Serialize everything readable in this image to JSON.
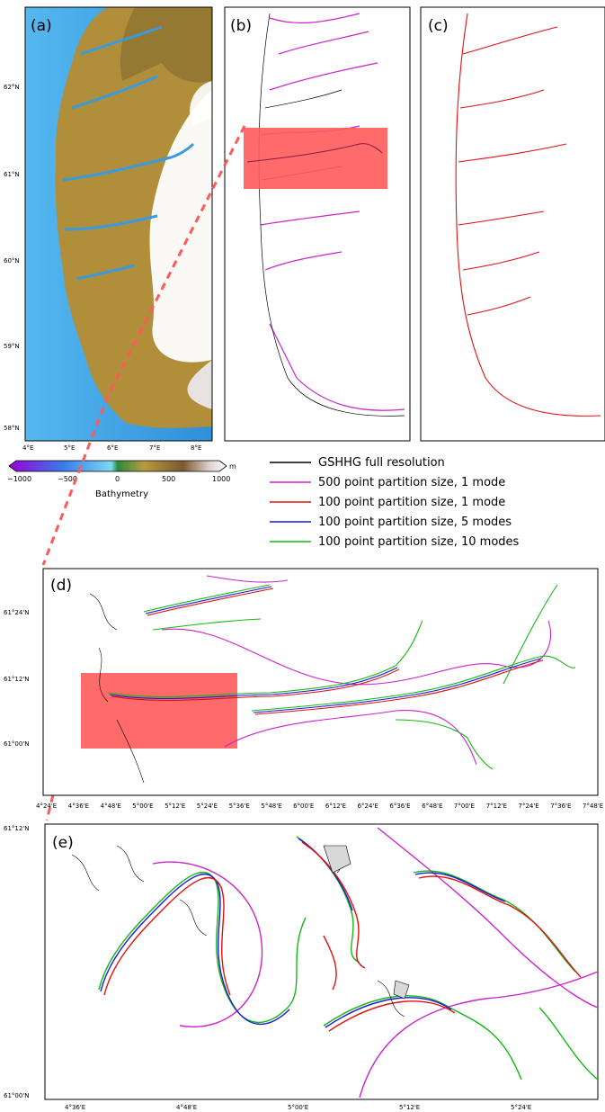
{
  "panels": {
    "a": {
      "label": "(a)",
      "lat_ticks": [
        "62°N",
        "61°N",
        "60°N",
        "59°N",
        "58°N"
      ],
      "lon_ticks": [
        "4°E",
        "5°E",
        "6°E",
        "7°E",
        "8°E"
      ]
    },
    "b": {
      "label": "(b)"
    },
    "c": {
      "label": "(c)"
    },
    "d": {
      "label": "(d)",
      "lat_ticks": [
        "61°24'N",
        "61°12'N",
        "61°00'N"
      ],
      "lon_ticks": [
        "4°24'E",
        "4°36'E",
        "4°48'E",
        "5°00'E",
        "5°12'E",
        "5°24'E",
        "5°36'E",
        "5°48'E",
        "6°00'E",
        "6°12'E",
        "6°24'E",
        "6°36'E",
        "6°48'E",
        "7°00'E",
        "7°12'E",
        "7°24'E",
        "7°36'E",
        "7°48'E"
      ]
    },
    "e": {
      "label": "(e)",
      "lat_ticks": [
        "61°12'N",
        "61°00'N"
      ],
      "lon_ticks": [
        "4°36'E",
        "4°48'E",
        "5°00'E",
        "5°12'E",
        "5°24'E"
      ]
    }
  },
  "colorbar": {
    "title": "Bathymetry",
    "unit": "m",
    "ticks": [
      "−1000",
      "−500",
      "0",
      "500",
      "1000"
    ]
  },
  "legend": [
    {
      "label": "GSHHG full resolution",
      "color": "#000000"
    },
    {
      "label": "500 point partition size, 1 mode",
      "color": "#cc22cc"
    },
    {
      "label": "100 point partition size, 1 mode",
      "color": "#e01010"
    },
    {
      "label": "100 point partition size, 5 modes",
      "color": "#1a1ad8"
    },
    {
      "label": "100 point partition size, 10 modes",
      "color": "#14b814"
    }
  ],
  "colors": {
    "highlight": "#ff5a5a",
    "sea": "#3aa0e8",
    "land_low": "#a58a30",
    "land_high": "#ffffff"
  }
}
